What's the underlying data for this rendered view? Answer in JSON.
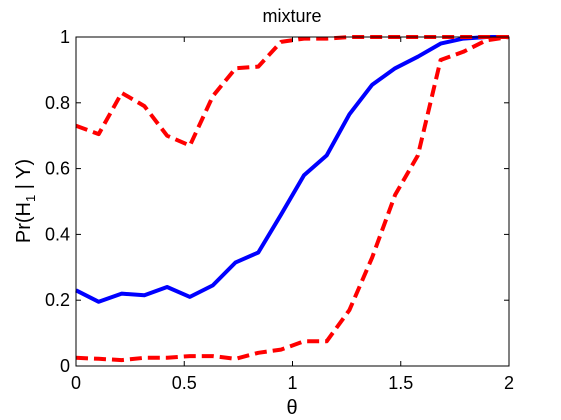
{
  "chart_data": {
    "type": "line",
    "title": "mixture",
    "xlabel": "θ",
    "ylabel": "Pr(H",
    "ylabel_subscript": "1",
    "ylabel_suffix": " | Y)",
    "xlim": [
      0,
      2
    ],
    "ylim": [
      0,
      1
    ],
    "xticks": [
      0,
      0.5,
      1,
      1.5,
      2
    ],
    "xtick_labels": [
      "0",
      "0.5",
      "1",
      "1.5",
      "2"
    ],
    "yticks": [
      0,
      0.2,
      0.4,
      0.6,
      0.8,
      1
    ],
    "ytick_labels": [
      "0",
      "0.2",
      "0.4",
      "0.6",
      "0.8",
      "1"
    ],
    "grid": false,
    "legend": "none",
    "series": [
      {
        "color": "#0000ff",
        "style": "solid",
        "x": [
          0,
          0.105,
          0.211,
          0.316,
          0.421,
          0.526,
          0.632,
          0.737,
          0.842,
          0.947,
          1.053,
          1.158,
          1.263,
          1.368,
          1.474,
          1.579,
          1.684,
          1.789,
          1.895,
          2.0
        ],
        "values": [
          0.23,
          0.195,
          0.22,
          0.215,
          0.24,
          0.21,
          0.245,
          0.315,
          0.345,
          0.46,
          0.58,
          0.64,
          0.765,
          0.855,
          0.905,
          0.94,
          0.98,
          0.995,
          1.0,
          1.0
        ]
      },
      {
        "color": "#ff0000",
        "style": "dashed",
        "x": [
          0,
          0.105,
          0.211,
          0.316,
          0.421,
          0.526,
          0.632,
          0.737,
          0.842,
          0.947,
          1.053,
          1.158,
          1.263,
          1.368,
          1.474,
          1.579,
          1.684,
          1.789,
          1.895,
          2.0
        ],
        "values": [
          0.73,
          0.705,
          0.83,
          0.79,
          0.7,
          0.67,
          0.82,
          0.905,
          0.91,
          0.985,
          0.995,
          0.995,
          1.0,
          1.0,
          1.0,
          1.0,
          1.0,
          1.0,
          1.0,
          1.0
        ]
      },
      {
        "color": "#ff0000",
        "style": "dashed",
        "x": [
          0,
          0.105,
          0.211,
          0.316,
          0.421,
          0.526,
          0.632,
          0.737,
          0.842,
          0.947,
          1.053,
          1.158,
          1.263,
          1.368,
          1.474,
          1.579,
          1.684,
          1.789,
          1.895,
          2.0
        ],
        "values": [
          0.025,
          0.022,
          0.018,
          0.025,
          0.025,
          0.03,
          0.03,
          0.022,
          0.04,
          0.05,
          0.075,
          0.075,
          0.17,
          0.33,
          0.52,
          0.64,
          0.93,
          0.955,
          0.99,
          1.0
        ]
      }
    ]
  }
}
